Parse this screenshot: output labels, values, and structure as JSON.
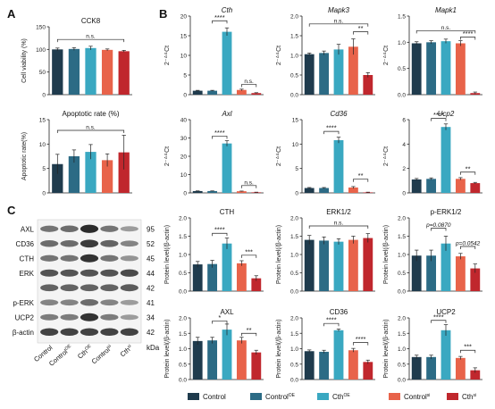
{
  "colors": [
    "#1f3b4d",
    "#2c6b85",
    "#3aa8c1",
    "#e8634a",
    "#c0272d"
  ],
  "panel_letters": {
    "A": "A",
    "B": "B",
    "C": "C"
  },
  "groups": [
    "Control",
    "Control OE",
    "Cth OE",
    "Control si",
    "Cth si"
  ],
  "legend": [
    {
      "label": "Control",
      "sup": ""
    },
    {
      "label": "Control",
      "sup": "OE"
    },
    {
      "label": "Cth",
      "sup": "OE"
    },
    {
      "label": "Control",
      "sup": "si"
    },
    {
      "label": "Cth",
      "sup": "si"
    }
  ],
  "blot": {
    "rows": [
      {
        "name": "AXL",
        "kda": "95"
      },
      {
        "name": "CD36",
        "kda": "52"
      },
      {
        "name": "CTH",
        "kda": "45"
      },
      {
        "name": "ERK",
        "kda": "44"
      },
      {
        "name": "",
        "kda": "42"
      },
      {
        "name": "p-ERK",
        "kda": "41"
      },
      {
        "name": "UCP2",
        "kda": "34"
      },
      {
        "name": "β-actin",
        "kda": "42"
      }
    ],
    "kda_unit": "kDa",
    "lanes": [
      {
        "label": "Control",
        "sup": ""
      },
      {
        "label": "Control",
        "sup": "OE"
      },
      {
        "label": "Cth",
        "sup": "OE"
      },
      {
        "label": "Control",
        "sup": "si"
      },
      {
        "label": "Cth",
        "sup": "si"
      }
    ]
  },
  "chart_data": [
    {
      "id": "A1",
      "type": "bar",
      "title": "CCK8",
      "title_italic": false,
      "ylabel": "Cell viability (%)",
      "ylim": [
        0,
        150
      ],
      "ticks": [
        0,
        50,
        100,
        150
      ],
      "values": [
        100,
        101,
        103,
        99,
        96
      ],
      "errors": [
        3,
        3,
        4,
        2,
        2
      ],
      "annotations": [
        {
          "text": "n.s.",
          "from": 0,
          "to": 4,
          "y": 122
        }
      ]
    },
    {
      "id": "A2",
      "type": "bar",
      "title": "Apoptotic rate (%)",
      "title_italic": false,
      "ylabel": "Apoptotic rate(%)",
      "ylim": [
        0,
        15
      ],
      "ticks": [
        0,
        5,
        10,
        15
      ],
      "values": [
        5.9,
        7.5,
        8.4,
        6.7,
        8.3
      ],
      "errors": [
        2,
        1.3,
        1.5,
        1.3,
        3.5
      ],
      "annotations": [
        {
          "text": "n.s.",
          "from": 0,
          "to": 4,
          "y": 12.8
        }
      ]
    },
    {
      "id": "Cth",
      "type": "bar",
      "title": "Cth",
      "title_italic": true,
      "ylabel": "2⁻ᐞᐞCt",
      "ylim": [
        0,
        20
      ],
      "ticks": [
        0,
        5,
        10,
        15,
        20
      ],
      "values": [
        1,
        1,
        16,
        1.2,
        0.4
      ],
      "errors": [
        0.1,
        0.1,
        1,
        0.2,
        0.1
      ],
      "annotations": [
        {
          "text": "****",
          "from": 1,
          "to": 2,
          "y": 18.8
        },
        {
          "text": "n.s.",
          "from": 3,
          "to": 4,
          "y": 2.6
        }
      ]
    },
    {
      "id": "Mapk3",
      "type": "bar",
      "title": "Mapk3",
      "title_italic": true,
      "ylabel": "2⁻ᐞᐞCt",
      "ylim": [
        0,
        2.0
      ],
      "ticks": [
        0,
        0.5,
        1.0,
        1.5,
        2.0
      ],
      "values": [
        1.03,
        1.06,
        1.15,
        1.22,
        0.5
      ],
      "errors": [
        0.03,
        0.05,
        0.13,
        0.2,
        0.06
      ],
      "annotations": [
        {
          "text": "n.s.",
          "from": 0,
          "to": 4,
          "y": 1.8
        },
        {
          "text": "**",
          "from": 3,
          "to": 4,
          "y": 1.6
        }
      ]
    },
    {
      "id": "Mapk1",
      "type": "bar",
      "title": "Mapk1",
      "title_italic": true,
      "ylabel": "2⁻ᐞᐞCt",
      "ylim": [
        0,
        1.5
      ],
      "ticks": [
        0,
        0.5,
        1.0,
        1.5
      ],
      "values": [
        0.98,
        1.0,
        1.02,
        0.98,
        0.03
      ],
      "errors": [
        0.03,
        0.03,
        0.04,
        0.05,
        0.02
      ],
      "annotations": [
        {
          "text": "n.s.",
          "from": 0,
          "to": 4,
          "y": 1.22
        },
        {
          "text": "****",
          "from": 3,
          "to": 4,
          "y": 1.1
        }
      ]
    },
    {
      "id": "Axl",
      "type": "bar",
      "title": "Axl",
      "title_italic": true,
      "ylabel": "2⁻ᐞᐞCt",
      "ylim": [
        0,
        40
      ],
      "ticks": [
        0,
        10,
        20,
        30,
        40
      ],
      "values": [
        1,
        1,
        27,
        0.9,
        0.3
      ],
      "errors": [
        0.1,
        0.1,
        1.5,
        0.1,
        0.1
      ],
      "annotations": [
        {
          "text": "****",
          "from": 1,
          "to": 2,
          "y": 31
        },
        {
          "text": "n.s.",
          "from": 3,
          "to": 4,
          "y": 4
        }
      ]
    },
    {
      "id": "Cd36",
      "type": "bar",
      "title": "Cd36",
      "title_italic": true,
      "ylabel": "2⁻ᐞᐞCt",
      "ylim": [
        0,
        15
      ],
      "ticks": [
        0,
        5,
        10,
        15
      ],
      "values": [
        1,
        1,
        10.8,
        1.1,
        0.1
      ],
      "errors": [
        0.1,
        0.1,
        0.6,
        0.2,
        0.05
      ],
      "annotations": [
        {
          "text": "****",
          "from": 1,
          "to": 2,
          "y": 12.6
        },
        {
          "text": "**",
          "from": 3,
          "to": 4,
          "y": 2.8
        }
      ]
    },
    {
      "id": "Ucp2",
      "type": "bar",
      "title": "Ucp2",
      "title_italic": true,
      "ylabel": "2⁻ᐞᐞCt",
      "ylim": [
        0,
        6
      ],
      "ticks": [
        0,
        2,
        4,
        6
      ],
      "values": [
        1.1,
        1.15,
        5.4,
        1.15,
        0.8
      ],
      "errors": [
        0.08,
        0.08,
        0.25,
        0.1,
        0.06
      ],
      "annotations": [
        {
          "text": "****",
          "from": 1,
          "to": 2,
          "y": 6.1
        },
        {
          "text": "**",
          "from": 3,
          "to": 4,
          "y": 1.7
        }
      ]
    },
    {
      "id": "CTH",
      "type": "bar",
      "title": "CTH",
      "title_italic": false,
      "ylabel": "Protein level(/β-actin)",
      "ylim": [
        0,
        2.0
      ],
      "ticks": [
        0,
        0.5,
        1.0,
        1.5,
        2.0
      ],
      "values": [
        0.73,
        0.74,
        1.3,
        0.76,
        0.35
      ],
      "errors": [
        0.08,
        0.1,
        0.15,
        0.07,
        0.07
      ],
      "annotations": [
        {
          "text": "****",
          "from": 1,
          "to": 2,
          "y": 1.58
        },
        {
          "text": "***",
          "from": 3,
          "to": 4,
          "y": 0.98
        }
      ]
    },
    {
      "id": "ERK12",
      "type": "bar",
      "title": "ERK1/2",
      "title_italic": false,
      "ylabel": "Protein level(/β-actin)",
      "ylim": [
        0,
        2.0
      ],
      "ticks": [
        0,
        0.5,
        1.0,
        1.5,
        2.0
      ],
      "values": [
        1.4,
        1.38,
        1.35,
        1.4,
        1.45
      ],
      "errors": [
        0.12,
        0.1,
        0.08,
        0.1,
        0.12
      ],
      "annotations": [
        {
          "text": "n.s.",
          "from": 0,
          "to": 4,
          "y": 1.78
        }
      ]
    },
    {
      "id": "pERK",
      "type": "bar",
      "title": "p-ERK1/2",
      "title_italic": false,
      "ylabel": "Protein level(/β-actin)",
      "ylim": [
        0,
        2.0
      ],
      "ticks": [
        0,
        0.5,
        1.0,
        1.5,
        2.0
      ],
      "values": [
        0.97,
        0.97,
        1.3,
        0.95,
        0.62
      ],
      "errors": [
        0.15,
        0.15,
        0.2,
        0.08,
        0.12
      ],
      "annotations": [
        {
          "text": "p=0.0870",
          "from": 1,
          "to": 2,
          "y": 1.72,
          "italic": true
        },
        {
          "text": "p=0.0542",
          "from": 3,
          "to": 4,
          "y": 1.22,
          "italic": true
        }
      ]
    },
    {
      "id": "AXL",
      "type": "bar",
      "title": "AXL",
      "title_italic": false,
      "ylabel": "Protein level(/β-actin)",
      "ylim": [
        0,
        2.0
      ],
      "ticks": [
        0,
        0.5,
        1.0,
        1.5,
        2.0
      ],
      "values": [
        1.25,
        1.27,
        1.62,
        1.27,
        0.88
      ],
      "errors": [
        0.12,
        0.1,
        0.18,
        0.1,
        0.07
      ],
      "annotations": [
        {
          "text": "*",
          "from": 1,
          "to": 2,
          "y": 1.9
        },
        {
          "text": "**",
          "from": 3,
          "to": 4,
          "y": 1.5
        }
      ]
    },
    {
      "id": "CD36",
      "type": "bar",
      "title": "CD36",
      "title_italic": false,
      "ylabel": "Protein level(/β-actin)",
      "ylim": [
        0,
        2.0
      ],
      "ticks": [
        0,
        0.5,
        1.0,
        1.5,
        2.0
      ],
      "values": [
        0.92,
        0.9,
        1.6,
        0.95,
        0.57
      ],
      "errors": [
        0.04,
        0.05,
        0.04,
        0.06,
        0.06
      ],
      "annotations": [
        {
          "text": "****",
          "from": 1,
          "to": 2,
          "y": 1.82
        },
        {
          "text": "****",
          "from": 3,
          "to": 4,
          "y": 1.2
        }
      ]
    },
    {
      "id": "UCP2",
      "type": "bar",
      "title": "UCP2",
      "title_italic": false,
      "ylabel": "Protein level(/β-actin)",
      "ylim": [
        0,
        2.0
      ],
      "ticks": [
        0,
        0.5,
        1.0,
        1.5,
        2.0
      ],
      "values": [
        0.73,
        0.73,
        1.6,
        0.7,
        0.3
      ],
      "errors": [
        0.06,
        0.06,
        0.18,
        0.05,
        0.08
      ],
      "annotations": [
        {
          "text": "****",
          "from": 1,
          "to": 2,
          "y": 1.92
        },
        {
          "text": "***",
          "from": 3,
          "to": 4,
          "y": 0.95
        }
      ]
    }
  ]
}
